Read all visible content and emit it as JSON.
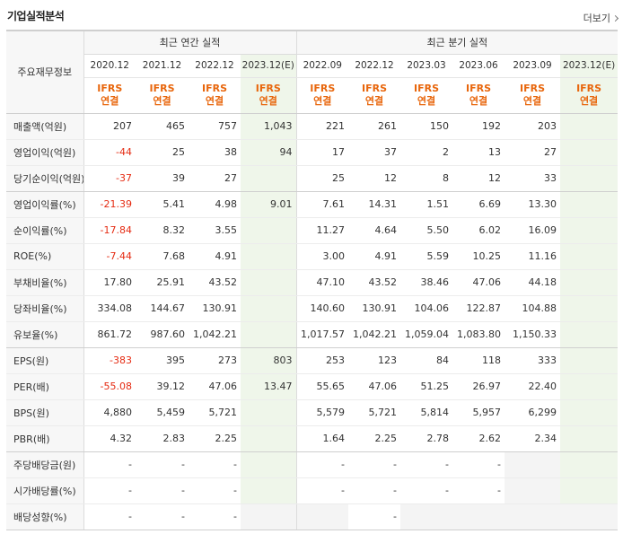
{
  "section_title": "기업실적분석",
  "more_label": "더보기",
  "table": {
    "row_header_label": "주요재무정보",
    "annual_label": "최근 연간 실적",
    "quarter_label": "최근 분기 실적",
    "periods": [
      "2020.12",
      "2021.12",
      "2022.12",
      "2023.12(E)",
      "2022.09",
      "2022.12",
      "2023.03",
      "2023.06",
      "2023.09",
      "2023.12(E)"
    ],
    "basis_line1": "IFRS",
    "basis_line2": "연결",
    "rows": [
      {
        "label": "매출액(억원)",
        "values": [
          "207",
          "465",
          "757",
          "1,043",
          "221",
          "261",
          "150",
          "192",
          "203",
          ""
        ]
      },
      {
        "label": "영업이익(억원)",
        "values": [
          "-44",
          "25",
          "38",
          "94",
          "17",
          "37",
          "2",
          "13",
          "27",
          ""
        ]
      },
      {
        "label": "당기순이익(억원)",
        "values": [
          "-37",
          "39",
          "27",
          "",
          "25",
          "12",
          "8",
          "12",
          "33",
          ""
        ]
      },
      {
        "label": "영업이익률(%)",
        "values": [
          "-21.39",
          "5.41",
          "4.98",
          "9.01",
          "7.61",
          "14.31",
          "1.51",
          "6.69",
          "13.30",
          ""
        ]
      },
      {
        "label": "순이익률(%)",
        "values": [
          "-17.84",
          "8.32",
          "3.55",
          "",
          "11.27",
          "4.64",
          "5.50",
          "6.02",
          "16.09",
          ""
        ]
      },
      {
        "label": "ROE(%)",
        "values": [
          "-7.44",
          "7.68",
          "4.91",
          "",
          "3.00",
          "4.91",
          "5.59",
          "10.25",
          "11.16",
          ""
        ]
      },
      {
        "label": "부채비율(%)",
        "values": [
          "17.80",
          "25.91",
          "43.52",
          "",
          "47.10",
          "43.52",
          "38.46",
          "47.06",
          "44.18",
          ""
        ]
      },
      {
        "label": "당좌비율(%)",
        "values": [
          "334.08",
          "144.67",
          "130.91",
          "",
          "140.60",
          "130.91",
          "104.06",
          "122.87",
          "104.88",
          ""
        ]
      },
      {
        "label": "유보율(%)",
        "values": [
          "861.72",
          "987.60",
          "1,042.21",
          "",
          "1,017.57",
          "1,042.21",
          "1,059.04",
          "1,083.80",
          "1,150.33",
          ""
        ]
      },
      {
        "label": "EPS(원)",
        "values": [
          "-383",
          "395",
          "273",
          "803",
          "253",
          "123",
          "84",
          "118",
          "333",
          ""
        ]
      },
      {
        "label": "PER(배)",
        "values": [
          "-55.08",
          "39.12",
          "47.06",
          "13.47",
          "55.65",
          "47.06",
          "51.25",
          "26.97",
          "22.40",
          ""
        ]
      },
      {
        "label": "BPS(원)",
        "values": [
          "4,880",
          "5,459",
          "5,721",
          "",
          "5,579",
          "5,721",
          "5,814",
          "5,957",
          "6,299",
          ""
        ]
      },
      {
        "label": "PBR(배)",
        "values": [
          "4.32",
          "2.83",
          "2.25",
          "",
          "1.64",
          "2.25",
          "2.78",
          "2.62",
          "2.34",
          ""
        ]
      },
      {
        "label": "주당배당금(원)",
        "values": [
          "-",
          "-",
          "-",
          "",
          "-",
          "-",
          "-",
          "-",
          "",
          ""
        ]
      },
      {
        "label": "시가배당률(%)",
        "values": [
          "-",
          "-",
          "-",
          "",
          "-",
          "-",
          "-",
          "-",
          "",
          ""
        ]
      },
      {
        "label": "배당성향(%)",
        "values": [
          "-",
          "-",
          "-",
          "",
          "",
          "-",
          "",
          "",
          "",
          ""
        ]
      }
    ]
  },
  "colors": {
    "basis_label": "#e8660c",
    "negative": "#e52b12",
    "estimate_bg": "#eff6ea",
    "empty_bg": "#f4f4f4"
  }
}
